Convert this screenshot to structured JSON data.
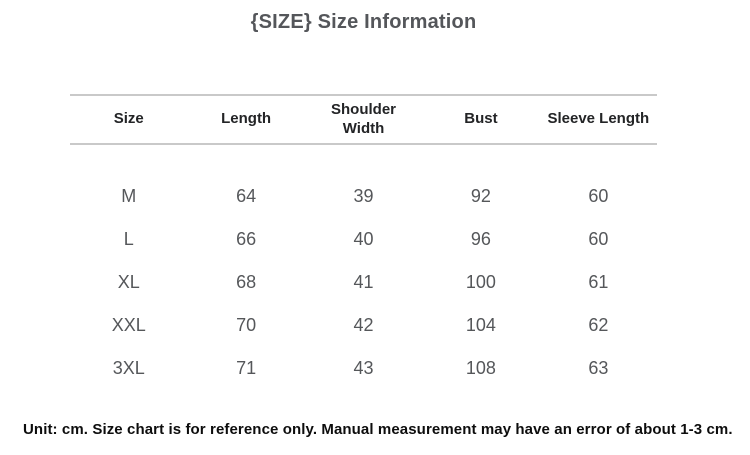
{
  "title": "{SIZE} Size Information",
  "table": {
    "columns": [
      "Size",
      "Length",
      "Shoulder Width",
      "Bust",
      "Sleeve Length"
    ],
    "rows": [
      [
        "M",
        "64",
        "39",
        "92",
        "60"
      ],
      [
        "L",
        "66",
        "40",
        "96",
        "60"
      ],
      [
        "XL",
        "68",
        "41",
        "100",
        "61"
      ],
      [
        "XXL",
        "70",
        "42",
        "104",
        "62"
      ],
      [
        "3XL",
        "71",
        "43",
        "108",
        "63"
      ]
    ]
  },
  "footer_note": "Unit: cm. Size chart is for reference only. Manual measurement may have an error of about 1-3 cm.",
  "colors": {
    "title": "#54565a",
    "header": "#232426",
    "body": "#55575a",
    "line": "#c9c9c9",
    "footer": "#0d0d0d"
  },
  "chart_data": {
    "type": "table",
    "title": "{SIZE} Size Information",
    "unit": "cm",
    "columns": [
      "Size",
      "Length",
      "Shoulder Width",
      "Bust",
      "Sleeve Length"
    ],
    "rows": [
      [
        "M",
        64,
        39,
        92,
        60
      ],
      [
        "L",
        66,
        40,
        96,
        60
      ],
      [
        "XL",
        68,
        41,
        100,
        61
      ],
      [
        "XXL",
        70,
        42,
        104,
        62
      ],
      [
        "3XL",
        71,
        43,
        108,
        63
      ]
    ],
    "note": "Unit: cm. Size chart is for reference only. Manual measurement may have an error of about 1-3 cm."
  }
}
